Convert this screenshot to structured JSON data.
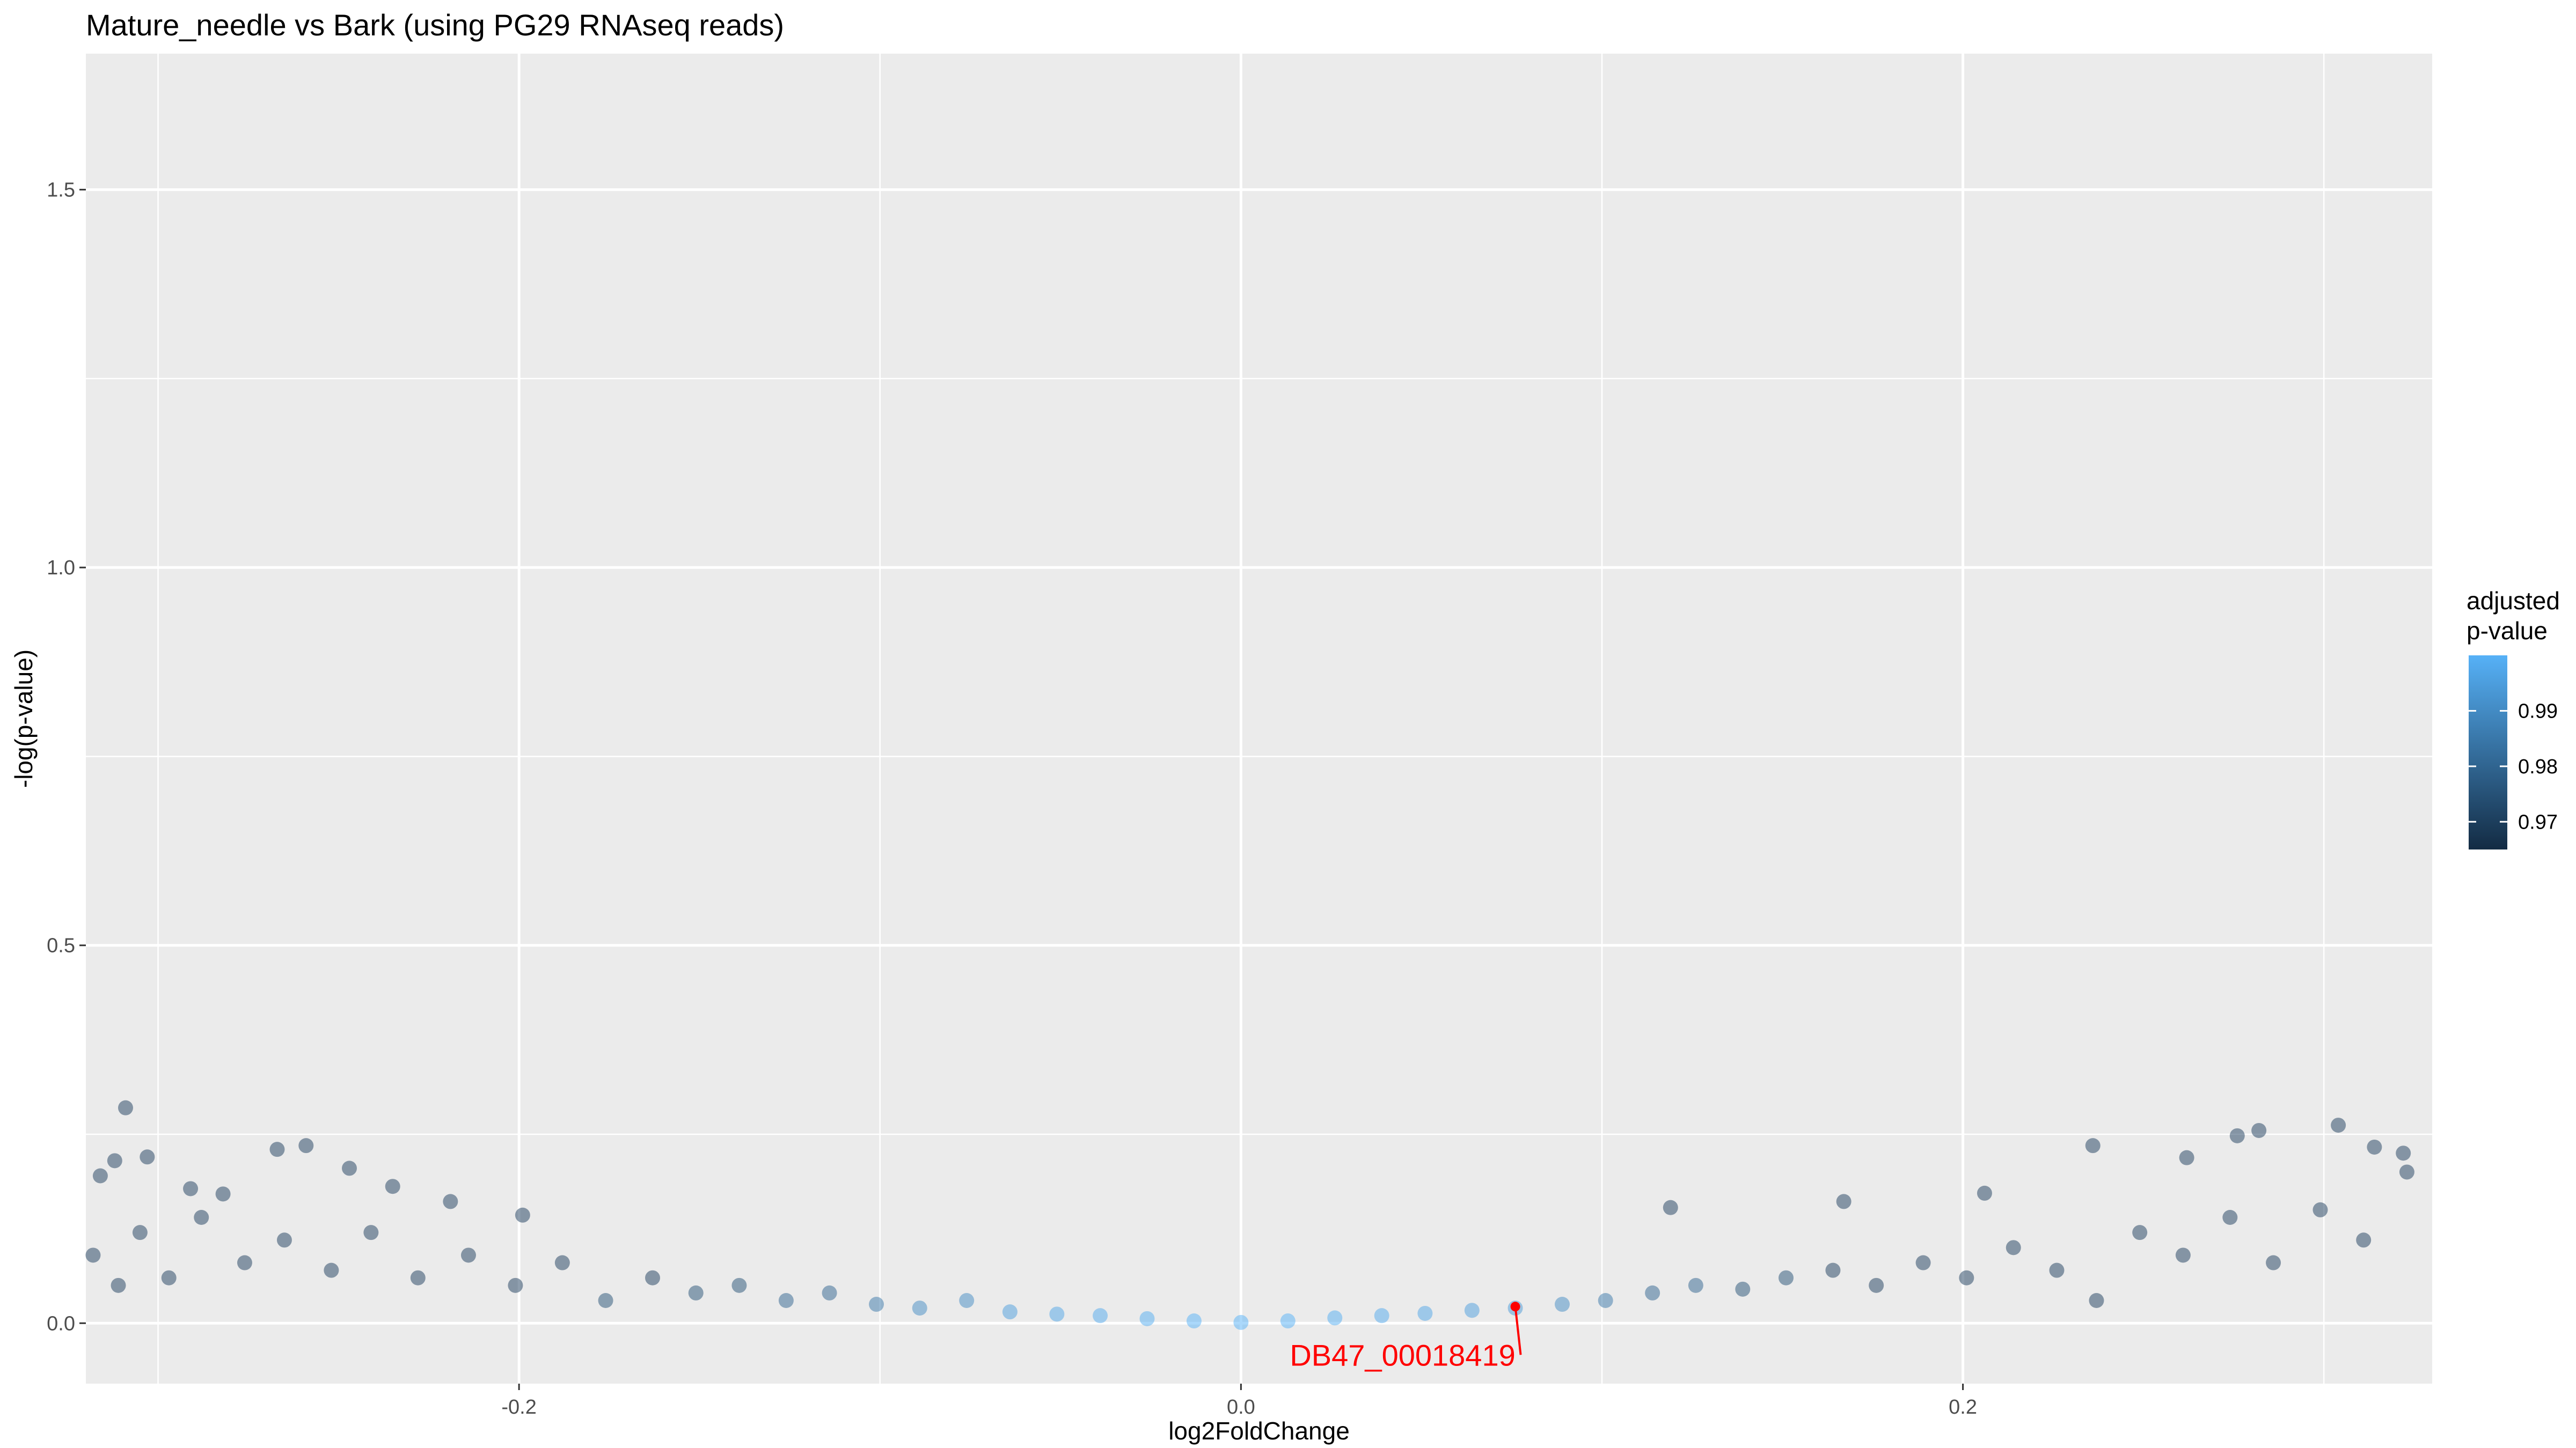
{
  "chart_data": {
    "type": "scatter",
    "title": "Mature_needle vs Bark (using PG29 RNAseq reads)",
    "xlabel": "log2FoldChange",
    "ylabel": "-log(p-value)",
    "xlim": [
      -0.32,
      0.33
    ],
    "ylim": [
      -0.08,
      1.68
    ],
    "x_ticks": [
      -0.2,
      0.0,
      0.2
    ],
    "x_tick_labels": [
      "-0.2",
      "0.0",
      "0.2"
    ],
    "y_ticks": [
      0.0,
      0.5,
      1.0,
      1.5
    ],
    "y_tick_labels": [
      "0.0",
      "0.5",
      "1.0",
      "1.5"
    ],
    "grid": true,
    "background": "#EBEBEB",
    "legend": {
      "title_line1": "adjusted",
      "title_line2": "p-value",
      "position": "right",
      "range": [
        0.965,
        1.0
      ],
      "ticks": [
        0.97,
        0.98,
        0.99
      ],
      "tick_labels": [
        "0.97",
        "0.98",
        "0.99"
      ],
      "color_low": "#132B43",
      "color_high": "#56B1F7"
    },
    "series": [
      {
        "points": [
          [
            -0.312,
            0.215,
            0.97
          ],
          [
            -0.309,
            0.285,
            0.97
          ],
          [
            -0.303,
            0.22,
            0.97
          ],
          [
            -0.316,
            0.195,
            0.97
          ],
          [
            -0.291,
            0.178,
            0.97
          ],
          [
            -0.282,
            0.171,
            0.97
          ],
          [
            -0.267,
            0.23,
            0.97
          ],
          [
            -0.259,
            0.235,
            0.97
          ],
          [
            -0.247,
            0.205,
            0.97
          ],
          [
            -0.235,
            0.181,
            0.97
          ],
          [
            -0.219,
            0.161,
            0.97
          ],
          [
            -0.199,
            0.143,
            0.97
          ],
          [
            -0.318,
            0.09,
            0.97
          ],
          [
            -0.311,
            0.05,
            0.97
          ],
          [
            -0.305,
            0.12,
            0.97
          ],
          [
            -0.297,
            0.06,
            0.97
          ],
          [
            -0.288,
            0.14,
            0.97
          ],
          [
            -0.276,
            0.08,
            0.97
          ],
          [
            -0.265,
            0.11,
            0.97
          ],
          [
            -0.252,
            0.07,
            0.97
          ],
          [
            -0.241,
            0.12,
            0.97
          ],
          [
            -0.228,
            0.06,
            0.97
          ],
          [
            -0.214,
            0.09,
            0.97
          ],
          [
            -0.201,
            0.05,
            0.97
          ],
          [
            -0.188,
            0.08,
            0.97
          ],
          [
            -0.176,
            0.03,
            0.975
          ],
          [
            -0.163,
            0.06,
            0.97
          ],
          [
            -0.151,
            0.04,
            0.975
          ],
          [
            -0.139,
            0.05,
            0.975
          ],
          [
            -0.126,
            0.03,
            0.98
          ],
          [
            -0.114,
            0.04,
            0.98
          ],
          [
            -0.101,
            0.025,
            0.985
          ],
          [
            -0.089,
            0.02,
            0.99
          ],
          [
            -0.076,
            0.03,
            0.99
          ],
          [
            -0.064,
            0.015,
            0.995
          ],
          [
            -0.051,
            0.012,
            0.997
          ],
          [
            -0.039,
            0.01,
            0.998
          ],
          [
            -0.026,
            0.006,
            0.999
          ],
          [
            -0.013,
            0.003,
            1.0
          ],
          [
            0.0,
            0.001,
            1.0
          ],
          [
            0.013,
            0.003,
            1.0
          ],
          [
            0.026,
            0.007,
            0.999
          ],
          [
            0.039,
            0.01,
            0.998
          ],
          [
            0.051,
            0.013,
            0.997
          ],
          [
            0.064,
            0.017,
            0.995
          ],
          [
            0.076,
            0.02,
            0.994
          ],
          [
            0.089,
            0.025,
            0.99
          ],
          [
            0.101,
            0.03,
            0.985
          ],
          [
            0.114,
            0.04,
            0.98
          ],
          [
            0.126,
            0.05,
            0.98
          ],
          [
            0.139,
            0.045,
            0.975
          ],
          [
            0.151,
            0.06,
            0.975
          ],
          [
            0.164,
            0.07,
            0.97
          ],
          [
            0.176,
            0.05,
            0.97
          ],
          [
            0.189,
            0.08,
            0.97
          ],
          [
            0.201,
            0.06,
            0.97
          ],
          [
            0.214,
            0.1,
            0.97
          ],
          [
            0.226,
            0.07,
            0.97
          ],
          [
            0.237,
            0.03,
            0.97
          ],
          [
            0.249,
            0.12,
            0.97
          ],
          [
            0.261,
            0.09,
            0.97
          ],
          [
            0.274,
            0.14,
            0.97
          ],
          [
            0.286,
            0.08,
            0.97
          ],
          [
            0.299,
            0.15,
            0.97
          ],
          [
            0.311,
            0.11,
            0.97
          ],
          [
            0.323,
            0.2,
            0.97
          ],
          [
            0.119,
            0.153,
            0.97
          ],
          [
            0.167,
            0.161,
            0.97
          ],
          [
            0.236,
            0.235,
            0.97
          ],
          [
            0.262,
            0.219,
            0.97
          ],
          [
            0.282,
            0.255,
            0.97
          ],
          [
            0.304,
            0.262,
            0.97
          ],
          [
            0.314,
            0.233,
            0.97
          ],
          [
            0.322,
            0.225,
            0.97
          ],
          [
            0.276,
            0.248,
            0.97
          ],
          [
            0.206,
            0.172,
            0.97
          ]
        ]
      }
    ],
    "annotation": {
      "label": "DB47_00018419",
      "x": 0.076,
      "y": 0.022,
      "color": "#FF0000"
    }
  }
}
